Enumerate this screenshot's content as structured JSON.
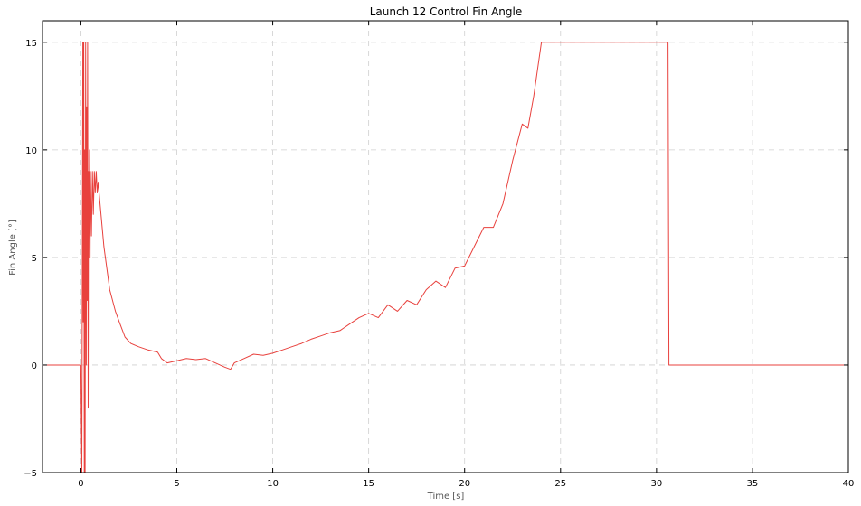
{
  "chart_data": {
    "type": "line",
    "title": "Launch 12 Control Fin Angle",
    "xlabel": "Time [s]",
    "ylabel": "Fin Angle [°]",
    "xlim": [
      -2,
      40
    ],
    "ylim": [
      -5,
      16
    ],
    "xticks": [
      0,
      5,
      10,
      15,
      20,
      25,
      30,
      35,
      40
    ],
    "yticks": [
      -5,
      0,
      5,
      10,
      15
    ],
    "grid": true,
    "legend": "none",
    "series": [
      {
        "color": "#e8413d",
        "x": [
          -2,
          0,
          0.05,
          0.1,
          0.12,
          0.15,
          0.18,
          0.2,
          0.22,
          0.25,
          0.28,
          0.3,
          0.33,
          0.35,
          0.38,
          0.4,
          0.42,
          0.45,
          0.48,
          0.5,
          0.55,
          0.6,
          0.65,
          0.7,
          0.75,
          0.8,
          0.85,
          0.9,
          1.0,
          1.2,
          1.5,
          1.8,
          2.0,
          2.3,
          2.6,
          3.0,
          3.5,
          4.0,
          4.2,
          4.5,
          5.0,
          5.5,
          6.0,
          6.5,
          7.0,
          7.5,
          7.8,
          8.0,
          8.5,
          9.0,
          9.5,
          10.0,
          10.5,
          11.0,
          11.5,
          12.0,
          12.5,
          13.0,
          13.5,
          14.0,
          14.5,
          15.0,
          15.5,
          16.0,
          16.5,
          17.0,
          17.5,
          18.0,
          18.5,
          19.0,
          19.5,
          20.0,
          20.5,
          21.0,
          21.5,
          22.0,
          22.5,
          23.0,
          23.3,
          23.6,
          24.0,
          30.6,
          30.65,
          40
        ],
        "values": [
          0,
          0,
          -5,
          15,
          2,
          15,
          -5,
          10,
          -5,
          15,
          0,
          12,
          3,
          15,
          -2,
          9,
          5,
          10,
          5,
          9,
          6,
          9,
          7,
          9,
          8,
          9,
          8,
          8.5,
          7.5,
          5.5,
          3.5,
          2.5,
          2.0,
          1.3,
          1.0,
          0.85,
          0.7,
          0.6,
          0.3,
          0.1,
          0.2,
          0.3,
          0.25,
          0.3,
          0.1,
          -0.1,
          -0.2,
          0.1,
          0.3,
          0.5,
          0.45,
          0.55,
          0.7,
          0.85,
          1.0,
          1.2,
          1.35,
          1.5,
          1.6,
          1.9,
          2.2,
          2.4,
          2.2,
          2.8,
          2.5,
          3.0,
          2.8,
          3.5,
          3.9,
          3.6,
          4.5,
          4.6,
          5.5,
          6.4,
          6.4,
          7.5,
          9.5,
          11.2,
          11.0,
          12.5,
          15,
          15,
          0,
          0
        ]
      }
    ]
  }
}
